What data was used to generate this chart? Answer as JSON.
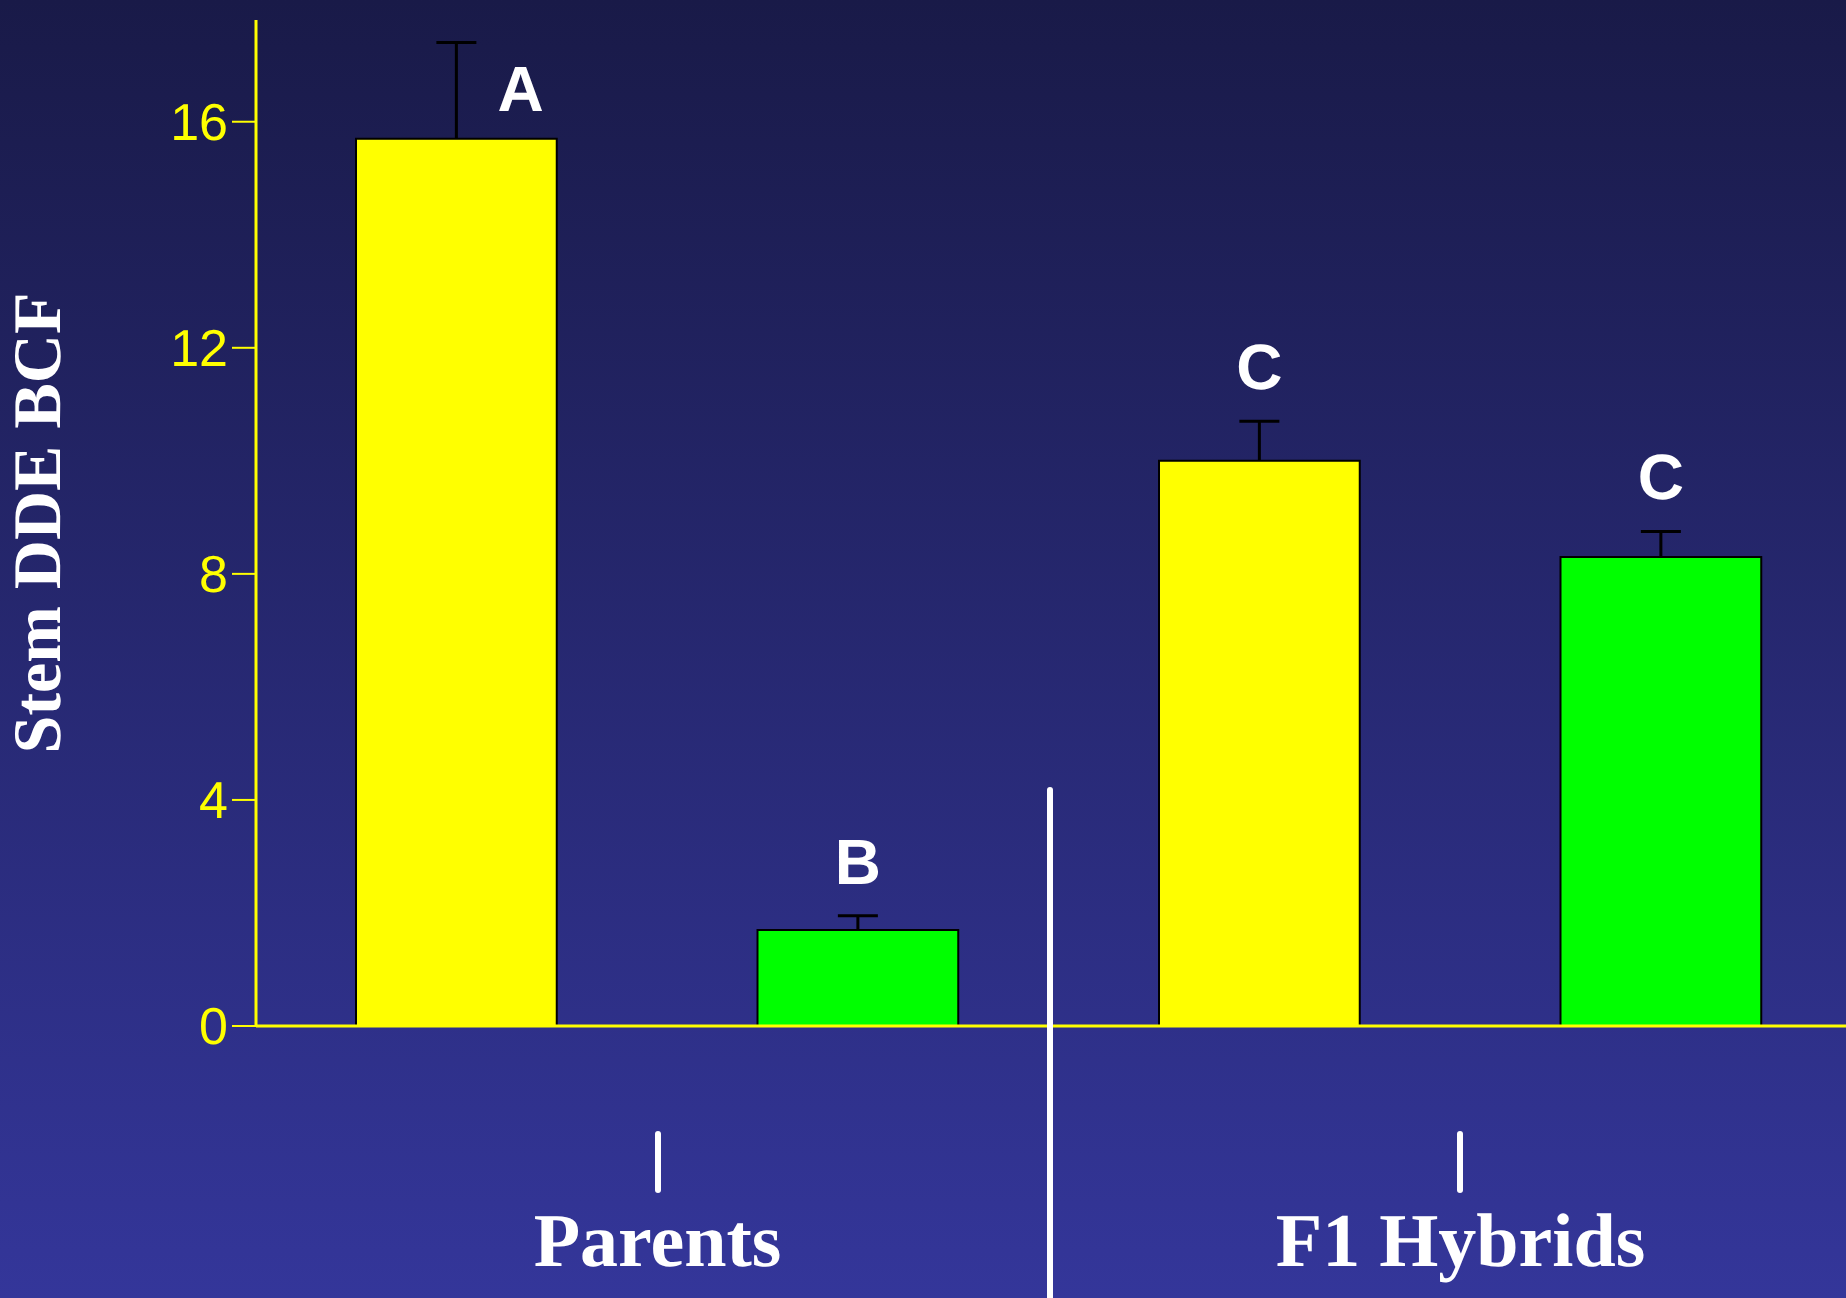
{
  "chart_data": {
    "type": "bar",
    "categories": [
      null,
      null,
      null,
      null
    ],
    "values": [
      15.7,
      1.7,
      10.0,
      8.3
    ],
    "colors": [
      "#ffff00",
      "#00ff00",
      "#ffff00",
      "#00ff00"
    ],
    "errors": [
      [
        15.7,
        17.4
      ],
      [
        1.7,
        1.95
      ],
      [
        10.0,
        10.7
      ],
      [
        8.3,
        8.75
      ]
    ],
    "value_labels": [
      "A",
      "B",
      "C",
      "C"
    ],
    "ylabel": "Stem DDE BCF",
    "annotations": [
      "Parents",
      "F1 Hybrids"
    ],
    "ylim": [
      0,
      17.8
    ],
    "yticks": [
      0,
      4,
      8,
      12,
      16
    ],
    "grid": false,
    "legend": false
  }
}
